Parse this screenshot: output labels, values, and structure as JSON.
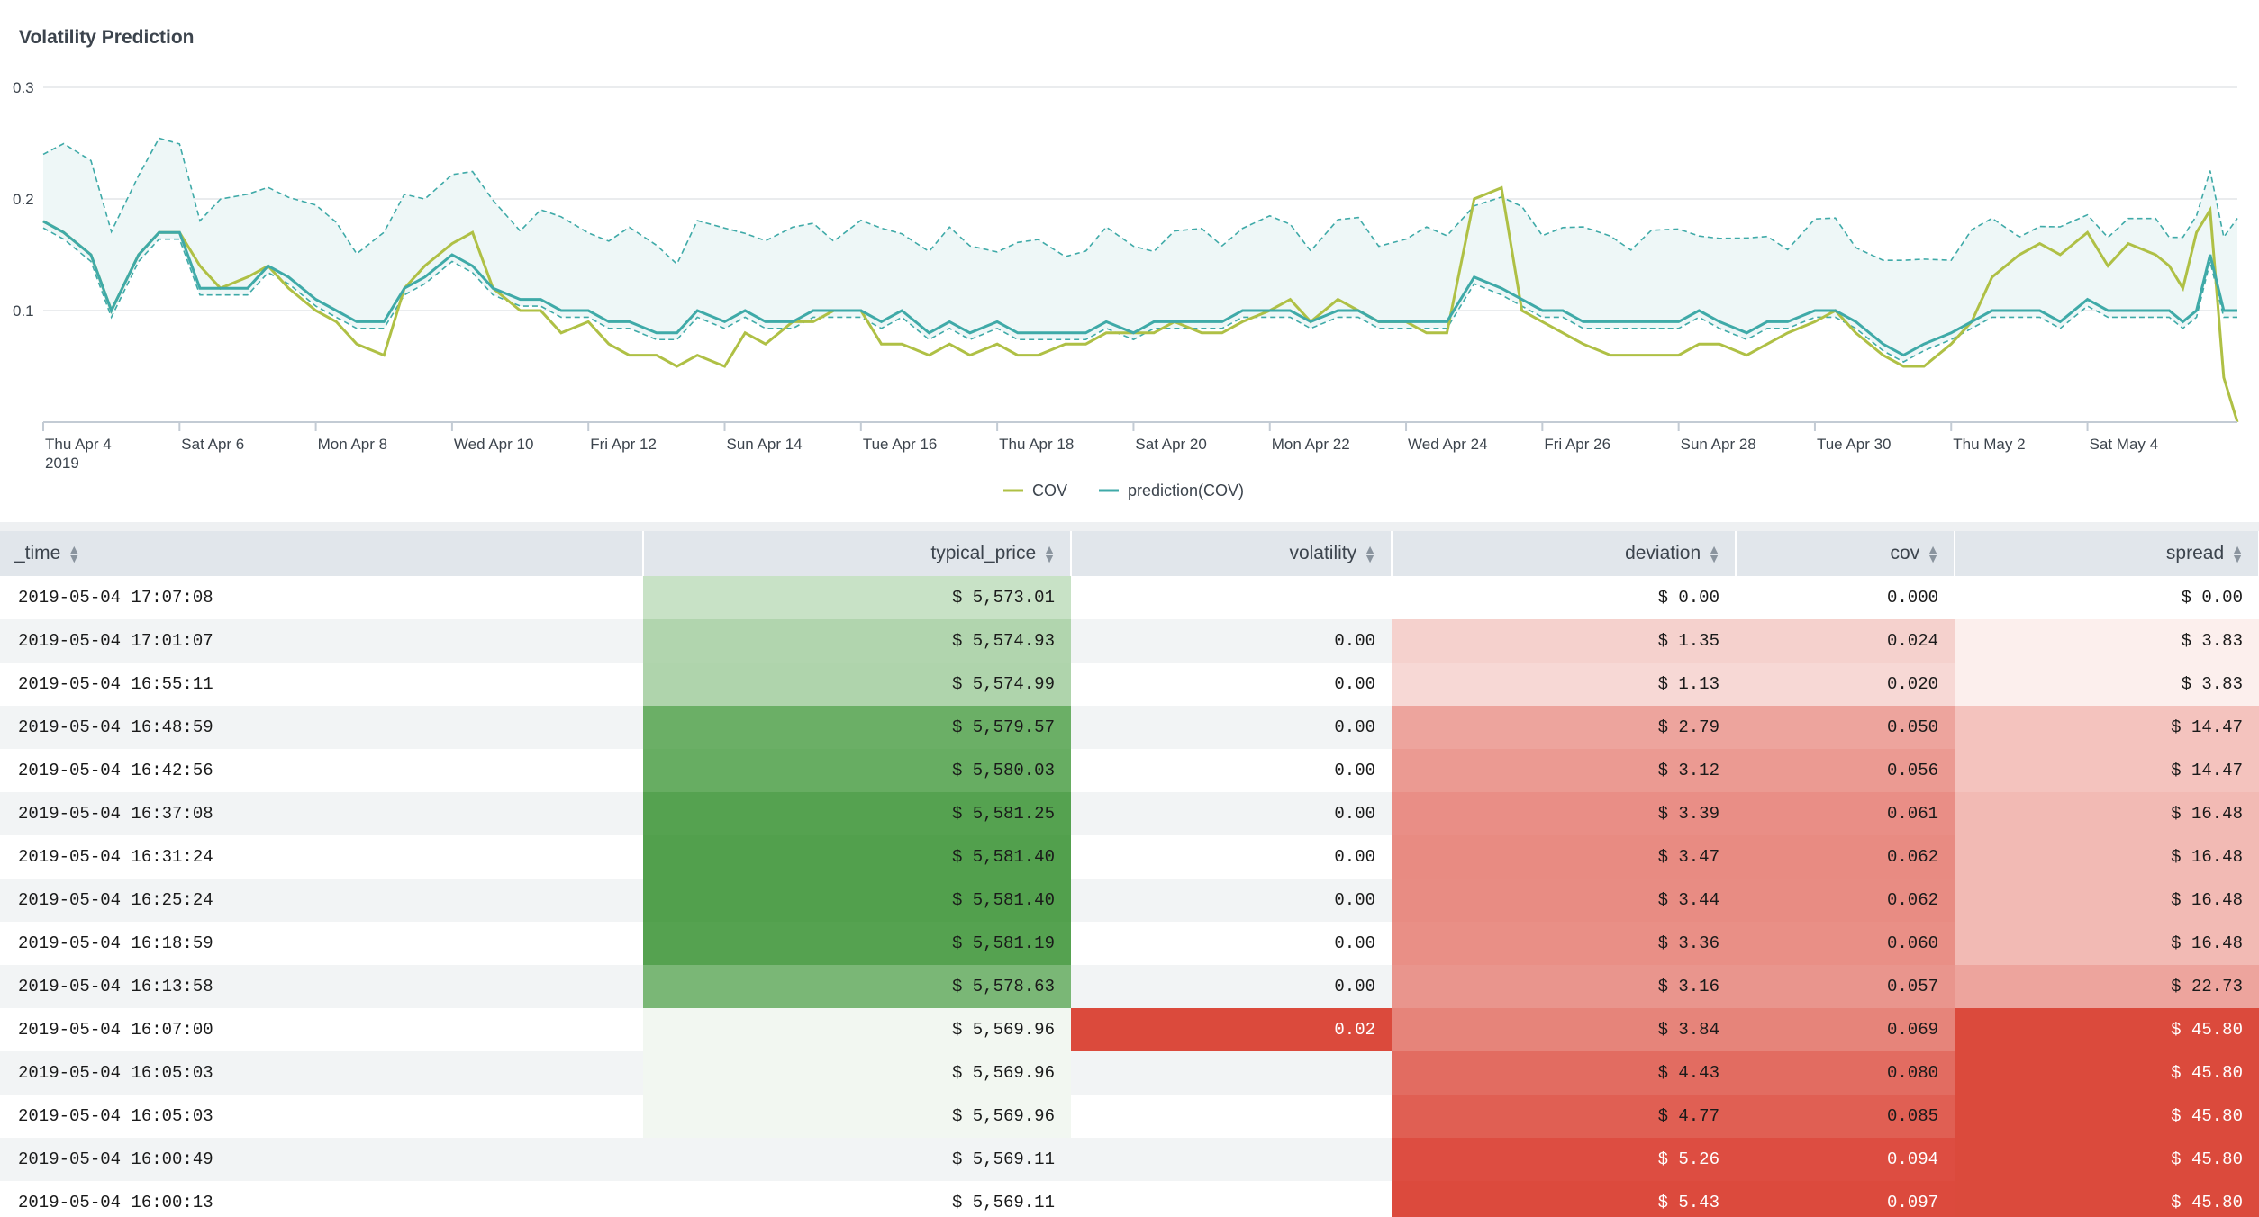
{
  "panel": {
    "title": "Volatility Prediction"
  },
  "chart_data": {
    "type": "line",
    "title": "Volatility Prediction",
    "xlabel": "",
    "ylabel": "",
    "ylim": [
      0,
      0.3
    ],
    "y_ticks": [
      "0.3",
      "0.2",
      "0.1"
    ],
    "x_ticks": [
      "Thu Apr 4",
      "Sat Apr 6",
      "Mon Apr 8",
      "Wed Apr 10",
      "Fri Apr 12",
      "Sun Apr 14",
      "Tue Apr 16",
      "Thu Apr 18",
      "Sat Apr 20",
      "Mon Apr 22",
      "Wed Apr 24",
      "Fri Apr 26",
      "Sun Apr 28",
      "Tue Apr 30",
      "Thu May 2",
      "Sat May 4"
    ],
    "x_year": "2019",
    "x_range_days": [
      0,
      32.2
    ],
    "legend_position": "bottom",
    "colors": {
      "cov": "#afc045",
      "prediction": "#3faaa8",
      "band": "#eef7f7",
      "grid": "#e3e6e9"
    },
    "series": [
      {
        "name": "COV",
        "x_days": [
          0,
          0.3,
          0.7,
          1,
          1.4,
          1.7,
          2,
          2.3,
          2.6,
          3,
          3.3,
          3.6,
          4,
          4.3,
          4.6,
          5,
          5.3,
          5.6,
          6,
          6.3,
          6.6,
          7,
          7.3,
          7.6,
          8,
          8.3,
          8.6,
          9,
          9.3,
          9.6,
          10,
          10.3,
          10.6,
          11,
          11.3,
          11.6,
          12,
          12.3,
          12.6,
          13,
          13.3,
          13.6,
          14,
          14.3,
          14.6,
          15,
          15.3,
          15.6,
          16,
          16.3,
          16.6,
          17,
          17.3,
          17.6,
          18,
          18.3,
          18.6,
          19,
          19.3,
          19.6,
          20,
          20.3,
          20.6,
          21,
          21.4,
          21.7,
          22,
          22.3,
          22.6,
          23,
          23.3,
          23.6,
          24,
          24.3,
          24.6,
          25,
          25.3,
          25.6,
          26,
          26.3,
          26.6,
          27,
          27.3,
          27.6,
          28,
          28.3,
          28.6,
          29,
          29.3,
          29.6,
          30,
          30.3,
          30.6,
          31,
          31.2,
          31.4,
          31.6,
          31.8,
          32,
          32.2
        ],
        "values": [
          0.18,
          0.17,
          0.15,
          0.1,
          0.15,
          0.17,
          0.17,
          0.14,
          0.12,
          0.13,
          0.14,
          0.12,
          0.1,
          0.09,
          0.07,
          0.06,
          0.12,
          0.14,
          0.16,
          0.17,
          0.12,
          0.1,
          0.1,
          0.08,
          0.09,
          0.07,
          0.06,
          0.06,
          0.05,
          0.06,
          0.05,
          0.08,
          0.07,
          0.09,
          0.09,
          0.1,
          0.1,
          0.07,
          0.07,
          0.06,
          0.07,
          0.06,
          0.07,
          0.06,
          0.06,
          0.07,
          0.07,
          0.08,
          0.08,
          0.08,
          0.09,
          0.08,
          0.08,
          0.09,
          0.1,
          0.11,
          0.09,
          0.11,
          0.1,
          0.09,
          0.09,
          0.08,
          0.08,
          0.2,
          0.21,
          0.1,
          0.09,
          0.08,
          0.07,
          0.06,
          0.06,
          0.06,
          0.06,
          0.07,
          0.07,
          0.06,
          0.07,
          0.08,
          0.09,
          0.1,
          0.08,
          0.06,
          0.05,
          0.05,
          0.07,
          0.09,
          0.13,
          0.15,
          0.16,
          0.15,
          0.17,
          0.14,
          0.16,
          0.15,
          0.14,
          0.12,
          0.17,
          0.19,
          0.04,
          0
        ]
      },
      {
        "name": "prediction(COV)",
        "x_days": [
          0,
          0.3,
          0.7,
          1,
          1.4,
          1.7,
          2,
          2.3,
          2.6,
          3,
          3.3,
          3.6,
          4,
          4.3,
          4.6,
          5,
          5.3,
          5.6,
          6,
          6.3,
          6.6,
          7,
          7.3,
          7.6,
          8,
          8.3,
          8.6,
          9,
          9.3,
          9.6,
          10,
          10.3,
          10.6,
          11,
          11.3,
          11.6,
          12,
          12.3,
          12.6,
          13,
          13.3,
          13.6,
          14,
          14.3,
          14.6,
          15,
          15.3,
          15.6,
          16,
          16.3,
          16.6,
          17,
          17.3,
          17.6,
          18,
          18.3,
          18.6,
          19,
          19.3,
          19.6,
          20,
          20.3,
          20.6,
          21,
          21.4,
          21.7,
          22,
          22.3,
          22.6,
          23,
          23.3,
          23.6,
          24,
          24.3,
          24.6,
          25,
          25.3,
          25.6,
          26,
          26.3,
          26.6,
          27,
          27.3,
          27.6,
          28,
          28.3,
          28.6,
          29,
          29.3,
          29.6,
          30,
          30.3,
          30.6,
          31,
          31.2,
          31.4,
          31.6,
          31.8,
          32,
          32.2
        ],
        "values": [
          0.18,
          0.17,
          0.15,
          0.1,
          0.15,
          0.17,
          0.17,
          0.12,
          0.12,
          0.12,
          0.14,
          0.13,
          0.11,
          0.1,
          0.09,
          0.09,
          0.12,
          0.13,
          0.15,
          0.14,
          0.12,
          0.11,
          0.11,
          0.1,
          0.1,
          0.09,
          0.09,
          0.08,
          0.08,
          0.1,
          0.09,
          0.1,
          0.09,
          0.09,
          0.1,
          0.1,
          0.1,
          0.09,
          0.1,
          0.08,
          0.09,
          0.08,
          0.09,
          0.08,
          0.08,
          0.08,
          0.08,
          0.09,
          0.08,
          0.09,
          0.09,
          0.09,
          0.09,
          0.1,
          0.1,
          0.1,
          0.09,
          0.1,
          0.1,
          0.09,
          0.09,
          0.09,
          0.09,
          0.13,
          0.12,
          0.11,
          0.1,
          0.1,
          0.09,
          0.09,
          0.09,
          0.09,
          0.09,
          0.1,
          0.09,
          0.08,
          0.09,
          0.09,
          0.1,
          0.1,
          0.09,
          0.07,
          0.06,
          0.07,
          0.08,
          0.09,
          0.1,
          0.1,
          0.1,
          0.09,
          0.11,
          0.1,
          0.1,
          0.1,
          0.1,
          0.09,
          0.1,
          0.15,
          0.1,
          0.1
        ]
      }
    ]
  },
  "legend": [
    {
      "label": "COV",
      "color": "#afc045"
    },
    {
      "label": "prediction(COV)",
      "color": "#3faaa8"
    }
  ],
  "table": {
    "columns": [
      "_time",
      "typical_price",
      "volatility",
      "deviation",
      "cov",
      "spread"
    ],
    "rows": [
      [
        "2019-05-04 17:07:08",
        "$ 5,573.01",
        "",
        "$ 0.00",
        "0.000",
        "$ 0.00"
      ],
      [
        "2019-05-04 17:01:07",
        "$ 5,574.93",
        "0.00",
        "$ 1.35",
        "0.024",
        "$ 3.83"
      ],
      [
        "2019-05-04 16:55:11",
        "$ 5,574.99",
        "0.00",
        "$ 1.13",
        "0.020",
        "$ 3.83"
      ],
      [
        "2019-05-04 16:48:59",
        "$ 5,579.57",
        "0.00",
        "$ 2.79",
        "0.050",
        "$ 14.47"
      ],
      [
        "2019-05-04 16:42:56",
        "$ 5,580.03",
        "0.00",
        "$ 3.12",
        "0.056",
        "$ 14.47"
      ],
      [
        "2019-05-04 16:37:08",
        "$ 5,581.25",
        "0.00",
        "$ 3.39",
        "0.061",
        "$ 16.48"
      ],
      [
        "2019-05-04 16:31:24",
        "$ 5,581.40",
        "0.00",
        "$ 3.47",
        "0.062",
        "$ 16.48"
      ],
      [
        "2019-05-04 16:25:24",
        "$ 5,581.40",
        "0.00",
        "$ 3.44",
        "0.062",
        "$ 16.48"
      ],
      [
        "2019-05-04 16:18:59",
        "$ 5,581.19",
        "0.00",
        "$ 3.36",
        "0.060",
        "$ 16.48"
      ],
      [
        "2019-05-04 16:13:58",
        "$ 5,578.63",
        "0.00",
        "$ 3.16",
        "0.057",
        "$ 22.73"
      ],
      [
        "2019-05-04 16:07:00",
        "$ 5,569.96",
        "0.02",
        "$ 3.84",
        "0.069",
        "$ 45.80"
      ],
      [
        "2019-05-04 16:05:03",
        "$ 5,569.96",
        "",
        "$ 4.43",
        "0.080",
        "$ 45.80"
      ],
      [
        "2019-05-04 16:05:03",
        "$ 5,569.96",
        "",
        "$ 4.77",
        "0.085",
        "$ 45.80"
      ],
      [
        "2019-05-04 16:00:49",
        "$ 5,569.11",
        "",
        "$ 5.26",
        "0.094",
        "$ 45.80"
      ],
      [
        "2019-05-04 16:00:13",
        "$ 5,569.11",
        "",
        "$ 5.43",
        "0.097",
        "$ 45.80"
      ]
    ],
    "cell_colors": {
      "typical_price": [
        "#c8e2c6",
        "#b1d5ae",
        "#afd4ac",
        "#6baf66",
        "#67ad62",
        "#55a250",
        "#52a04d",
        "#52a04d",
        "#55a250",
        "#7ab776",
        "#f2f7f1",
        "#f2f7f1",
        "#f2f7f1",
        "",
        ""
      ],
      "volatility": [
        "",
        "",
        "",
        "",
        "",
        "",
        "",
        "",
        "",
        "",
        "#db4a3c",
        "",
        "",
        "",
        ""
      ],
      "deviation": [
        "",
        "#f5d1cd",
        "#f7d8d5",
        "#eda49d",
        "#eb9a92",
        "#e98e86",
        "#e88b82",
        "#e88c83",
        "#e98f86",
        "#e9958d",
        "#e6847a",
        "#e26c61",
        "#e05f53",
        "#dd4d41",
        "#dc4a3d"
      ],
      "cov": [
        "",
        "#f5d1cd",
        "#f7d8d5",
        "#eda49d",
        "#eb9a92",
        "#e98e86",
        "#e88b82",
        "#e88c83",
        "#e98f86",
        "#e9958d",
        "#e6847a",
        "#e26c61",
        "#e05f53",
        "#dd4d41",
        "#dc4a3d"
      ],
      "spread": [
        "",
        "#fcefed",
        "#fcefed",
        "#f4c3be",
        "#f4c3be",
        "#f2bab4",
        "#f2bab4",
        "#f2bab4",
        "#f2bab4",
        "#eda49d",
        "#db4a3c",
        "#db4a3c",
        "#db4a3c",
        "#db4a3c",
        "#db4a3c"
      ]
    }
  }
}
